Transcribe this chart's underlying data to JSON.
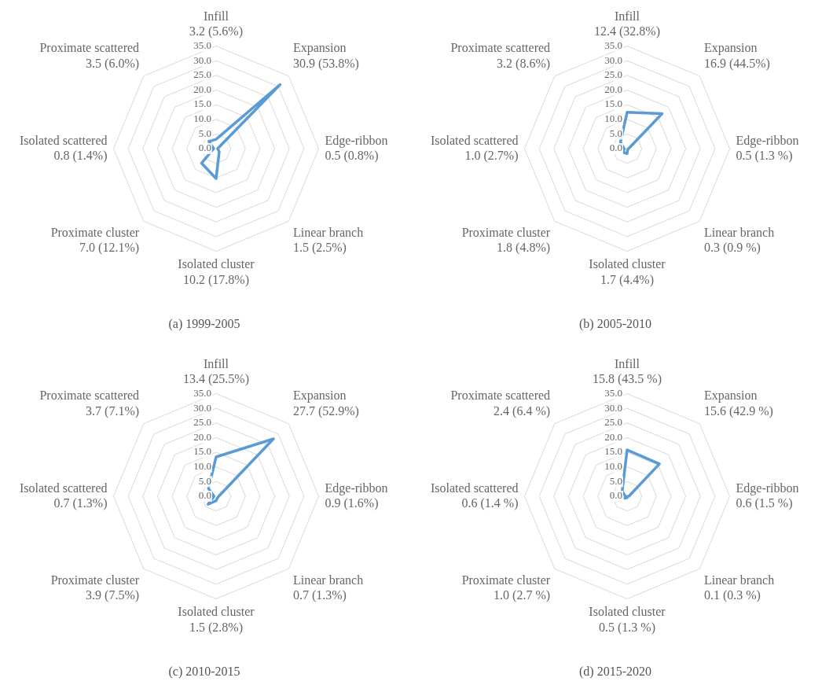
{
  "chart_data": [
    {
      "type": "radar",
      "title": "(a) 1999-2005",
      "categories": [
        "Infill 3.2 (5.6%)",
        "Expansion 30.9 (53.8%)",
        "Edge-ribbon 0.5 (0.8%)",
        "Linear branch 1.5 (2.5%)",
        "Isolated cluster 10.2 (17.8%)",
        "Proximate cluster 7.0 (12.1%)",
        "Isolated scattered 0.8 (1.4%)",
        "Proximate scattered 3.5 (6.0%)"
      ],
      "series": [
        {
          "color": "#5b9bd5",
          "values": [
            3.2,
            30.9,
            0.5,
            1.5,
            10.2,
            7.0,
            0.8,
            3.5
          ]
        }
      ],
      "ylim": [
        0,
        35
      ],
      "yticks": [
        {
          "value": 0,
          "label": "0.0"
        },
        {
          "value": 5,
          "label": "5.0"
        },
        {
          "value": 10,
          "label": "10.0"
        },
        {
          "value": 15,
          "label": "15.0"
        },
        {
          "value": 20,
          "label": "20.0"
        },
        {
          "value": 25,
          "label": "25.0"
        },
        {
          "value": 30,
          "label": "30.0"
        },
        {
          "value": 35,
          "label": "35.0"
        }
      ],
      "grid": true,
      "legend": false,
      "marker": "none"
    },
    {
      "type": "radar",
      "title": "(b) 2005-2010",
      "categories": [
        "Infill 12.4 (32.8%)",
        "Expansion 16.9 (44.5%)",
        "Edge-ribbon 0.5 (1.3 %)",
        "Linear branch 0.3 (0.9 %)",
        "Isolated cluster 1.7 (4.4%)",
        "Proximate cluster 1.8 (4.8%)",
        "Isolated scattered 1.0 (2.7%)",
        "Proximate scattered 3.2 (8.6%)"
      ],
      "series": [
        {
          "color": "#5b9bd5",
          "values": [
            12.4,
            16.9,
            0.5,
            0.3,
            1.7,
            1.8,
            1.0,
            3.2
          ]
        }
      ],
      "ylim": [
        0,
        35
      ],
      "yticks": [
        {
          "value": 0,
          "label": "0.0"
        },
        {
          "value": 5,
          "label": "5.0"
        },
        {
          "value": 10,
          "label": "10.0"
        },
        {
          "value": 15,
          "label": "15.0"
        },
        {
          "value": 20,
          "label": "20.0"
        },
        {
          "value": 25,
          "label": "25.0"
        },
        {
          "value": 30,
          "label": "30.0"
        },
        {
          "value": 35,
          "label": "35.0"
        }
      ],
      "grid": true,
      "legend": false,
      "marker": "none"
    },
    {
      "type": "radar",
      "title": "(c) 2010-2015",
      "categories": [
        "Infill 13.4 (25.5%)",
        "Expansion 27.7 (52.9%)",
        "Edge-ribbon 0.9 (1.6%)",
        "Linear branch 0.7 (1.3%)",
        "Isolated cluster 1.5 (2.8%)",
        "Proximate cluster 3.9 (7.5%)",
        "Isolated scattered 0.7 (1.3%)",
        "Proximate scattered 3.7 (7.1%)"
      ],
      "series": [
        {
          "color": "#5b9bd5",
          "values": [
            13.4,
            27.7,
            0.9,
            0.7,
            1.5,
            3.9,
            0.7,
            3.7
          ]
        }
      ],
      "ylim": [
        0,
        35
      ],
      "yticks": [
        {
          "value": 0,
          "label": "0.0"
        },
        {
          "value": 5,
          "label": "5.0"
        },
        {
          "value": 10,
          "label": "10.0"
        },
        {
          "value": 15,
          "label": "15.0"
        },
        {
          "value": 20,
          "label": "20.0"
        },
        {
          "value": 25,
          "label": "25.0"
        },
        {
          "value": 30,
          "label": "30.0"
        },
        {
          "value": 35,
          "label": "35.0"
        }
      ],
      "grid": true,
      "legend": false,
      "marker": "none"
    },
    {
      "type": "radar",
      "title": "(d) 2015-2020",
      "categories": [
        "Infill 15.8 (43.5 %)",
        "Expansion 15.6 (42.9 %)",
        "Edge-ribbon 0.6 (1.5 %)",
        "Linear branch 0.1 (0.3 %)",
        "Isolated cluster 0.5 (1.3 %)",
        "Proximate cluster 1.0 (2.7 %)",
        "Isolated scattered 0.6 (1.4 %)",
        "Proximate scattered 2.4 (6.4 %)"
      ],
      "series": [
        {
          "color": "#5b9bd5",
          "values": [
            15.8,
            15.6,
            0.6,
            0.1,
            0.5,
            1.0,
            0.6,
            2.4
          ]
        }
      ],
      "ylim": [
        0,
        35
      ],
      "yticks": [
        {
          "value": 0,
          "label": "0.0"
        },
        {
          "value": 5,
          "label": "5.0"
        },
        {
          "value": 10,
          "label": "10.0"
        },
        {
          "value": 15,
          "label": "15.0"
        },
        {
          "value": 20,
          "label": "20.0"
        },
        {
          "value": 25,
          "label": "25.0"
        },
        {
          "value": 30,
          "label": "30.0"
        },
        {
          "value": 35,
          "label": "35.0"
        }
      ],
      "grid": true,
      "legend": false,
      "marker": "none"
    }
  ]
}
